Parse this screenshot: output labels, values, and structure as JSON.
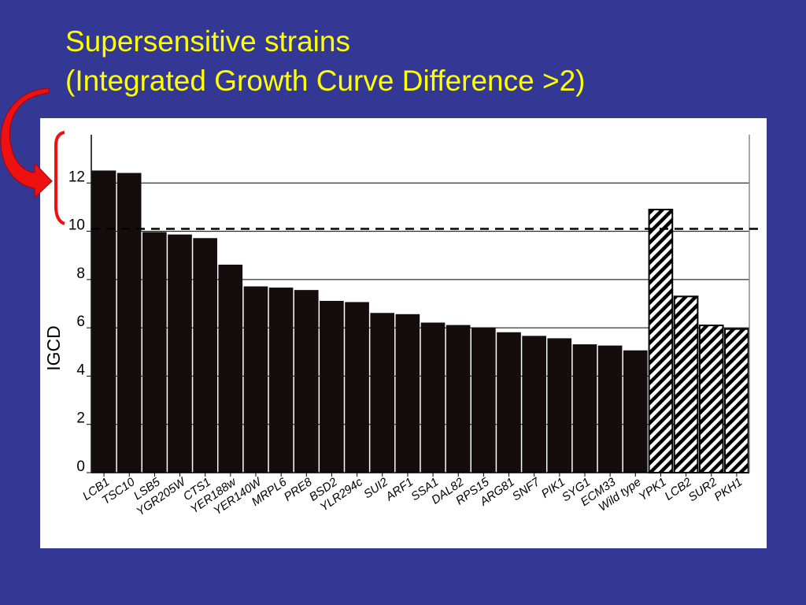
{
  "slide": {
    "title_line1": "Supersensitive strains",
    "title_line2": "(Integrated Growth Curve Difference >2)"
  },
  "colors": {
    "background": "#343895",
    "title": "#ffff00",
    "solid_bar": "#150c0c",
    "hatched_bar_stripe": "#000000",
    "threshold_line": "#000000",
    "arrow": "#ee1111",
    "bracket": "#ee1111"
  },
  "chart_data": {
    "type": "bar",
    "ylabel": "IGCD",
    "ylim": [
      0,
      14
    ],
    "yticks": [
      0,
      2,
      4,
      6,
      8,
      10,
      12
    ],
    "grid": true,
    "threshold": 10.1,
    "categories": [
      "LCB1",
      "TSC10",
      "LSB5",
      "YGR205W",
      "CTS1",
      "YER188w",
      "YER140W",
      "MRPL6",
      "PRE8",
      "BSD2",
      "YLR294c",
      "SUI2",
      "ARF1",
      "SSA1",
      "DAL82",
      "RPS15",
      "ARG81",
      "SNF7",
      "PIK1",
      "SYG1",
      "ECM33",
      "Wild type",
      "YPK1",
      "LCB2",
      "SUR2",
      "PKH1"
    ],
    "series": [
      {
        "values": [
          12.5,
          12.4,
          9.95,
          9.85,
          9.7,
          8.6,
          7.7,
          7.65,
          7.55,
          7.1,
          7.05,
          6.6,
          6.55,
          6.2,
          6.1,
          6.0,
          5.8,
          5.65,
          5.55,
          5.3,
          5.25,
          5.05,
          10.9,
          7.3,
          6.1,
          5.95
        ],
        "styles": [
          "solid",
          "solid",
          "solid",
          "solid",
          "solid",
          "solid",
          "solid",
          "solid",
          "solid",
          "solid",
          "solid",
          "solid",
          "solid",
          "solid",
          "solid",
          "solid",
          "solid",
          "solid",
          "solid",
          "solid",
          "solid",
          "solid",
          "hatched",
          "hatched",
          "hatched",
          "hatched"
        ]
      }
    ]
  }
}
